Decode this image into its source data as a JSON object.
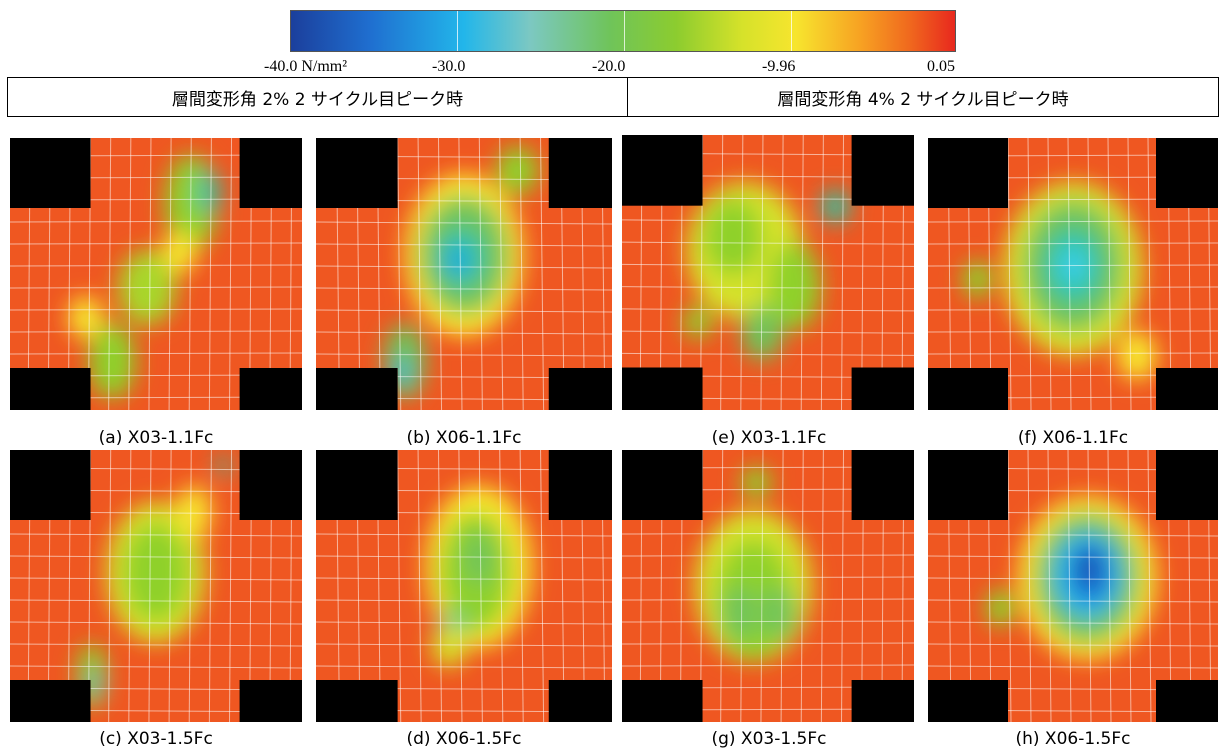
{
  "colorbar": {
    "ticks": [
      "-40.0 N/mm²",
      "-30.0",
      "-20.0",
      "-9.96",
      "0.05"
    ]
  },
  "headers": {
    "left": "層間変形角 2% 2 サイクル目ピーク時",
    "right": "層間変形角 4% 2 サイクル目ピーク時"
  },
  "panels": [
    {
      "caption": "(a) X03-1.1Fc",
      "blobs": [
        [
          "#8fd12c",
          0.62,
          0.24,
          0.09,
          0.18
        ],
        [
          "#2fc4a3",
          0.68,
          0.2,
          0.04,
          0.08
        ],
        [
          "#a8d62a",
          0.47,
          0.55,
          0.1,
          0.14
        ],
        [
          "#8fd12c",
          0.35,
          0.82,
          0.08,
          0.14
        ],
        [
          "#f7e52e",
          0.58,
          0.42,
          0.06,
          0.08
        ],
        [
          "#f7e52e",
          0.26,
          0.66,
          0.06,
          0.08
        ]
      ]
    },
    {
      "caption": "(b) X06-1.1Fc",
      "blobs": [
        [
          "#f7e52e",
          0.5,
          0.43,
          0.2,
          0.3
        ],
        [
          "#6fc45a",
          0.5,
          0.43,
          0.15,
          0.22
        ],
        [
          "#2fc4a3",
          0.49,
          0.44,
          0.08,
          0.11
        ],
        [
          "#22a8e0",
          0.48,
          0.45,
          0.04,
          0.06
        ],
        [
          "#6fc45a",
          0.3,
          0.82,
          0.07,
          0.14
        ],
        [
          "#22b6ea",
          0.29,
          0.86,
          0.025,
          0.05
        ],
        [
          "#8fd12c",
          0.68,
          0.12,
          0.07,
          0.09
        ]
      ]
    },
    {
      "caption": "(e) X03-1.1Fc",
      "blobs": [
        [
          "#d6e22a",
          0.42,
          0.42,
          0.2,
          0.25
        ],
        [
          "#8fd12c",
          0.38,
          0.37,
          0.1,
          0.14
        ],
        [
          "#8fd12c",
          0.59,
          0.55,
          0.09,
          0.16
        ],
        [
          "#6fc45a",
          0.48,
          0.72,
          0.07,
          0.1
        ],
        [
          "#2fc4a3",
          0.73,
          0.26,
          0.05,
          0.06
        ],
        [
          "#8fd12c",
          0.26,
          0.68,
          0.05,
          0.06
        ]
      ]
    },
    {
      "caption": "(f) X06-1.1Fc",
      "blobs": [
        [
          "#d6e22a",
          0.5,
          0.48,
          0.24,
          0.32
        ],
        [
          "#6fc45a",
          0.5,
          0.47,
          0.17,
          0.24
        ],
        [
          "#2fc4a3",
          0.5,
          0.47,
          0.1,
          0.14
        ],
        [
          "#3ecfe8",
          0.5,
          0.47,
          0.05,
          0.07
        ],
        [
          "#8fd12c",
          0.17,
          0.52,
          0.05,
          0.07
        ],
        [
          "#f7e52e",
          0.72,
          0.8,
          0.07,
          0.09
        ]
      ]
    },
    {
      "caption": "(c) X03-1.5Fc",
      "blobs": [
        [
          "#d6e22a",
          0.5,
          0.45,
          0.17,
          0.26
        ],
        [
          "#8fd12c",
          0.5,
          0.45,
          0.11,
          0.18
        ],
        [
          "#8fd12c",
          0.28,
          0.83,
          0.05,
          0.12
        ],
        [
          "#22b6ea",
          0.29,
          0.86,
          0.015,
          0.05
        ],
        [
          "#f7e52e",
          0.63,
          0.23,
          0.06,
          0.1
        ],
        [
          "#2fc4a3",
          0.73,
          0.06,
          0.02,
          0.04
        ]
      ]
    },
    {
      "caption": "(d) X06-1.5Fc",
      "blobs": [
        [
          "#f7e52e",
          0.55,
          0.43,
          0.18,
          0.3
        ],
        [
          "#8fd12c",
          0.54,
          0.45,
          0.12,
          0.22
        ],
        [
          "#6fc45a",
          0.55,
          0.4,
          0.05,
          0.1
        ],
        [
          "#2fc4a3",
          0.46,
          0.66,
          0.05,
          0.06
        ],
        [
          "#d6e22a",
          0.45,
          0.72,
          0.06,
          0.08
        ]
      ]
    },
    {
      "caption": "(g) X03-1.5Fc",
      "blobs": [
        [
          "#d6e22a",
          0.45,
          0.5,
          0.2,
          0.28
        ],
        [
          "#8fd12c",
          0.45,
          0.55,
          0.13,
          0.22
        ],
        [
          "#6fc45a",
          0.4,
          0.6,
          0.06,
          0.1
        ],
        [
          "#6fc45a",
          0.54,
          0.6,
          0.06,
          0.1
        ],
        [
          "#8fd12c",
          0.46,
          0.12,
          0.05,
          0.06
        ]
      ]
    },
    {
      "caption": "(h) X06-1.5Fc",
      "blobs": [
        [
          "#f7e52e",
          0.55,
          0.47,
          0.24,
          0.3
        ],
        [
          "#6fc45a",
          0.55,
          0.47,
          0.18,
          0.24
        ],
        [
          "#22b6ea",
          0.55,
          0.46,
          0.12,
          0.16
        ],
        [
          "#1f6fd0",
          0.56,
          0.45,
          0.07,
          0.11
        ],
        [
          "#1b4fb0",
          0.55,
          0.43,
          0.035,
          0.06
        ],
        [
          "#8fd12c",
          0.25,
          0.58,
          0.05,
          0.07
        ]
      ]
    }
  ]
}
